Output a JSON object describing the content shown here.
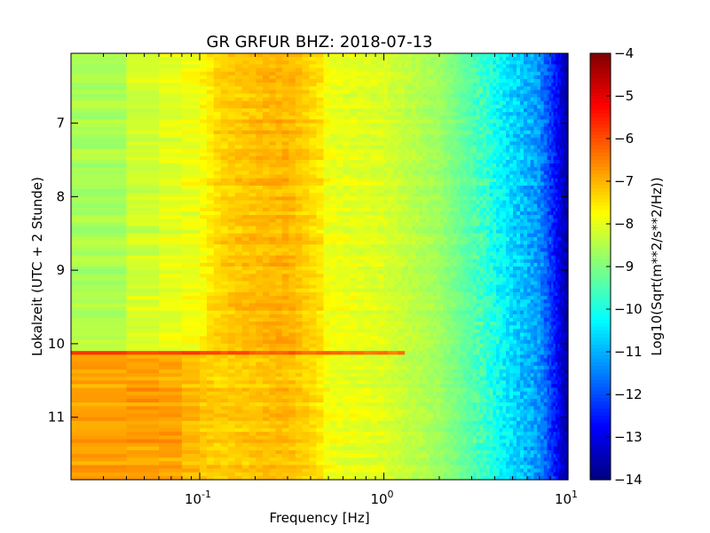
{
  "chart_data": {
    "type": "heatmap",
    "title": "GR GRFUR BHZ: 2018-07-13",
    "xlabel": "Frequency [Hz]",
    "ylabel": "Lokalzeit (UTC + 2 Stunde)",
    "x_scale": "log",
    "xlim": [
      0.02,
      10
    ],
    "x_ticks": [
      {
        "value": 0.1,
        "base": "10",
        "exp": "-1"
      },
      {
        "value": 1,
        "base": "10",
        "exp": "0"
      },
      {
        "value": 10,
        "base": "10",
        "exp": "1"
      }
    ],
    "ylim": [
      6.05,
      11.85
    ],
    "y_inverted": true,
    "y_ticks": [
      "7",
      "8",
      "9",
      "10",
      "11"
    ],
    "colorbar": {
      "label": "Log10(Sqrt(m**2/s**2/Hz))",
      "range": [
        -14,
        -4
      ],
      "ticks": [
        "-4",
        "-5",
        "-6",
        "-7",
        "-8",
        "-9",
        "-10",
        "-11",
        "-12",
        "-13",
        "-14"
      ],
      "colormap": "jet"
    },
    "frequency_bins_hz": [
      0.02,
      0.04,
      0.06,
      0.08,
      0.1,
      0.13,
      0.17,
      0.22,
      0.28,
      0.36,
      0.47,
      0.6,
      0.78,
      1.0,
      1.3,
      1.7,
      2.2,
      2.8,
      3.6,
      4.6,
      6.0,
      7.7,
      9.0,
      10.0
    ],
    "spectral_profile": [
      {
        "f": 0.02,
        "quiet": -8.7,
        "noisy": -6.9
      },
      {
        "f": 0.04,
        "quiet": -8.4,
        "noisy": -6.8
      },
      {
        "f": 0.06,
        "quiet": -8.0,
        "noisy": -6.8
      },
      {
        "f": 0.08,
        "quiet": -8.0,
        "noisy": -6.9
      },
      {
        "f": 0.1,
        "quiet": -7.8,
        "noisy": -7.2
      },
      {
        "f": 0.13,
        "quiet": -7.3,
        "noisy": -7.3
      },
      {
        "f": 0.2,
        "quiet": -7.1,
        "noisy": -7.2
      },
      {
        "f": 0.3,
        "quiet": -7.0,
        "noisy": -7.1
      },
      {
        "f": 0.45,
        "quiet": -7.5,
        "noisy": -7.5
      },
      {
        "f": 0.5,
        "quiet": -7.9,
        "noisy": -7.9
      },
      {
        "f": 1.0,
        "quiet": -8.1,
        "noisy": -8.1
      },
      {
        "f": 2.0,
        "quiet": -8.7,
        "noisy": -8.7
      },
      {
        "f": 3.5,
        "quiet": -9.7,
        "noisy": -9.7
      },
      {
        "f": 5.0,
        "quiet": -10.6,
        "noisy": -10.6
      },
      {
        "f": 7.0,
        "quiet": -11.3,
        "noisy": -11.3
      },
      {
        "f": 8.5,
        "quiet": -12.5,
        "noisy": -12.5
      },
      {
        "f": 10.0,
        "quiet": -13.8,
        "noisy": -13.8
      }
    ],
    "events": [
      {
        "time_start": 10.1,
        "time_end": 10.17,
        "level": -5.6,
        "f_max": 1.3
      }
    ],
    "noisy_period_start": 10.17,
    "grid": false,
    "legend": "none"
  }
}
